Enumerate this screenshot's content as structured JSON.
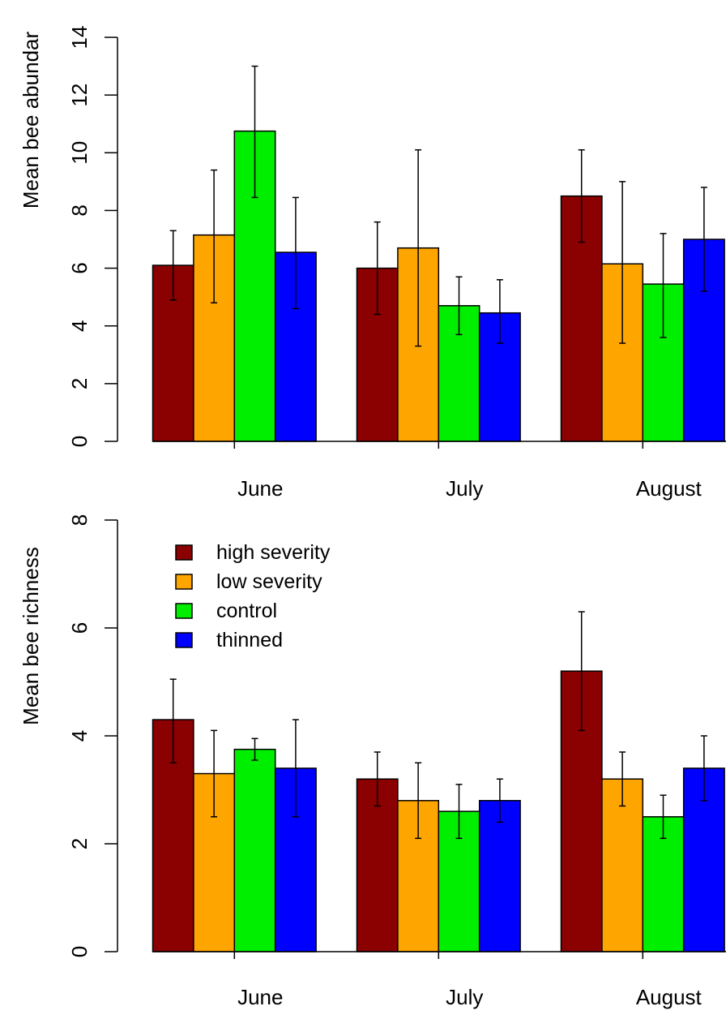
{
  "chart_data": [
    {
      "type": "bar",
      "title": "",
      "xlabel": "",
      "ylabel": "Mean bee abundar",
      "ylim": [
        0,
        14
      ],
      "yticks": [
        "0",
        "2",
        "4",
        "6",
        "8",
        "10",
        "12",
        "14"
      ],
      "categories": [
        "June",
        "July",
        "August"
      ],
      "series": [
        {
          "name": "high severity",
          "color": "#8B0000",
          "values": [
            6.1,
            6.0,
            8.5
          ],
          "error_low": [
            4.9,
            4.4,
            6.9
          ],
          "error_high": [
            7.3,
            7.6,
            10.1
          ]
        },
        {
          "name": "low severity",
          "color": "#FFA500",
          "values": [
            7.15,
            6.7,
            6.15
          ],
          "error_low": [
            4.8,
            3.3,
            3.4
          ],
          "error_high": [
            9.4,
            10.1,
            9.0
          ]
        },
        {
          "name": "control",
          "color": "#00EE00",
          "values": [
            10.75,
            4.7,
            5.45
          ],
          "error_low": [
            8.45,
            3.7,
            3.6
          ],
          "error_high": [
            13.0,
            5.7,
            7.2
          ]
        },
        {
          "name": "thinned",
          "color": "#0000FF",
          "values": [
            6.55,
            4.45,
            7.0
          ],
          "error_low": [
            4.6,
            3.4,
            5.2
          ],
          "error_high": [
            8.45,
            5.6,
            8.8
          ]
        }
      ],
      "legend": false,
      "grid": false
    },
    {
      "type": "bar",
      "title": "",
      "xlabel": "",
      "ylabel": "Mean bee richness",
      "ylim": [
        0,
        8
      ],
      "yticks": [
        "0",
        "2",
        "4",
        "6",
        "8"
      ],
      "categories": [
        "June",
        "July",
        "August"
      ],
      "series": [
        {
          "name": "high severity",
          "color": "#8B0000",
          "values": [
            4.3,
            3.2,
            5.2
          ],
          "error_low": [
            3.5,
            2.7,
            4.1
          ],
          "error_high": [
            5.05,
            3.7,
            6.3
          ]
        },
        {
          "name": "low severity",
          "color": "#FFA500",
          "values": [
            3.3,
            2.8,
            3.2
          ],
          "error_low": [
            2.5,
            2.1,
            2.7
          ],
          "error_high": [
            4.1,
            3.5,
            3.7
          ]
        },
        {
          "name": "control",
          "color": "#00EE00",
          "values": [
            3.75,
            2.6,
            2.5
          ],
          "error_low": [
            3.55,
            2.1,
            2.1
          ],
          "error_high": [
            3.95,
            3.1,
            2.9
          ]
        },
        {
          "name": "thinned",
          "color": "#0000FF",
          "values": [
            3.4,
            2.8,
            3.4
          ],
          "error_low": [
            2.5,
            2.4,
            2.8
          ],
          "error_high": [
            4.3,
            3.2,
            4.0
          ]
        }
      ],
      "legend": true,
      "legend_position": "top-left",
      "grid": false
    }
  ]
}
